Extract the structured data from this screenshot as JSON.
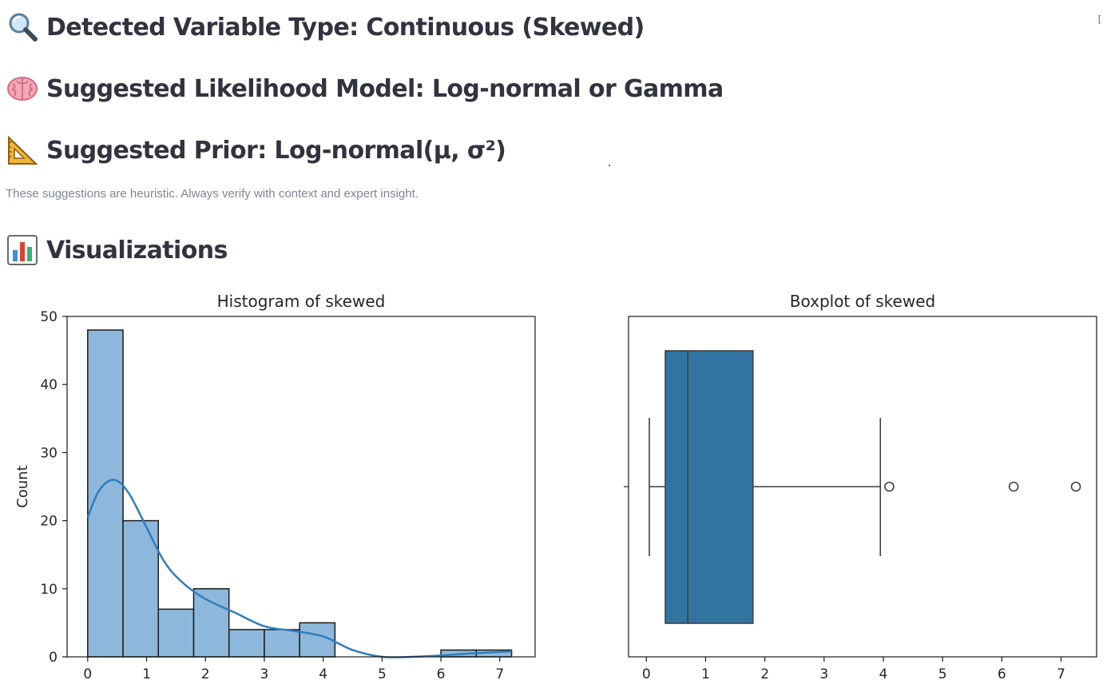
{
  "headings": {
    "detected": "Detected Variable Type: Continuous (Skewed)",
    "likelihood": "Suggested Likelihood Model: Log-normal or Gamma",
    "prior": "Suggested Prior: Log-normal(μ, σ²)",
    "visualizations": "Visualizations"
  },
  "icons": {
    "detected": "magnifying-glass-icon",
    "likelihood": "brain-icon",
    "prior": "triangular-ruler-icon",
    "visualizations": "bar-chart-icon"
  },
  "caption": "These suggestions are heuristic. Always verify with context and expert insight.",
  "colors": {
    "hist_fill": "#8db8dc",
    "kde_line": "#2f7ebc",
    "box_fill": "#3274a1",
    "text": "#31333f",
    "caption": "#808495"
  },
  "chart_data": [
    {
      "type": "bar",
      "title": "Histogram of skewed",
      "xlabel": "",
      "ylabel": "Count",
      "bin_edges": [
        0.0,
        0.6,
        1.2,
        1.8,
        2.4,
        3.0,
        3.6,
        4.2,
        4.8,
        5.4,
        6.0,
        6.6,
        7.2
      ],
      "values": [
        48,
        20,
        7,
        10,
        4,
        4,
        5,
        0,
        0,
        0,
        1,
        1
      ],
      "kde": {
        "x": [
          0.0,
          0.2,
          0.45,
          0.7,
          1.0,
          1.3,
          1.6,
          2.0,
          2.5,
          3.0,
          3.5,
          4.0,
          4.5,
          5.0,
          5.5,
          6.0,
          6.5,
          7.2
        ],
        "y": [
          20.5,
          24.5,
          26.0,
          24.0,
          19.0,
          14.0,
          11.0,
          8.5,
          6.5,
          4.5,
          3.8,
          3.0,
          1.0,
          0.0,
          0.0,
          0.2,
          0.5,
          0.8
        ]
      },
      "xlim": [
        -0.35,
        7.6
      ],
      "ylim": [
        0,
        50
      ],
      "xticks": [
        0,
        1,
        2,
        3,
        4,
        5,
        6,
        7
      ],
      "yticks": [
        0,
        10,
        20,
        30,
        40,
        50
      ]
    },
    {
      "type": "box",
      "title": "Boxplot of skewed",
      "xlabel": "",
      "ylabel": "",
      "whisker_low": 0.05,
      "q1": 0.32,
      "median": 0.7,
      "q3": 1.8,
      "whisker_high": 3.95,
      "outliers": [
        4.1,
        6.2,
        7.25
      ],
      "xlim": [
        -0.3,
        7.6
      ],
      "xticks": [
        0,
        1,
        2,
        3,
        4,
        5,
        6,
        7
      ]
    }
  ]
}
